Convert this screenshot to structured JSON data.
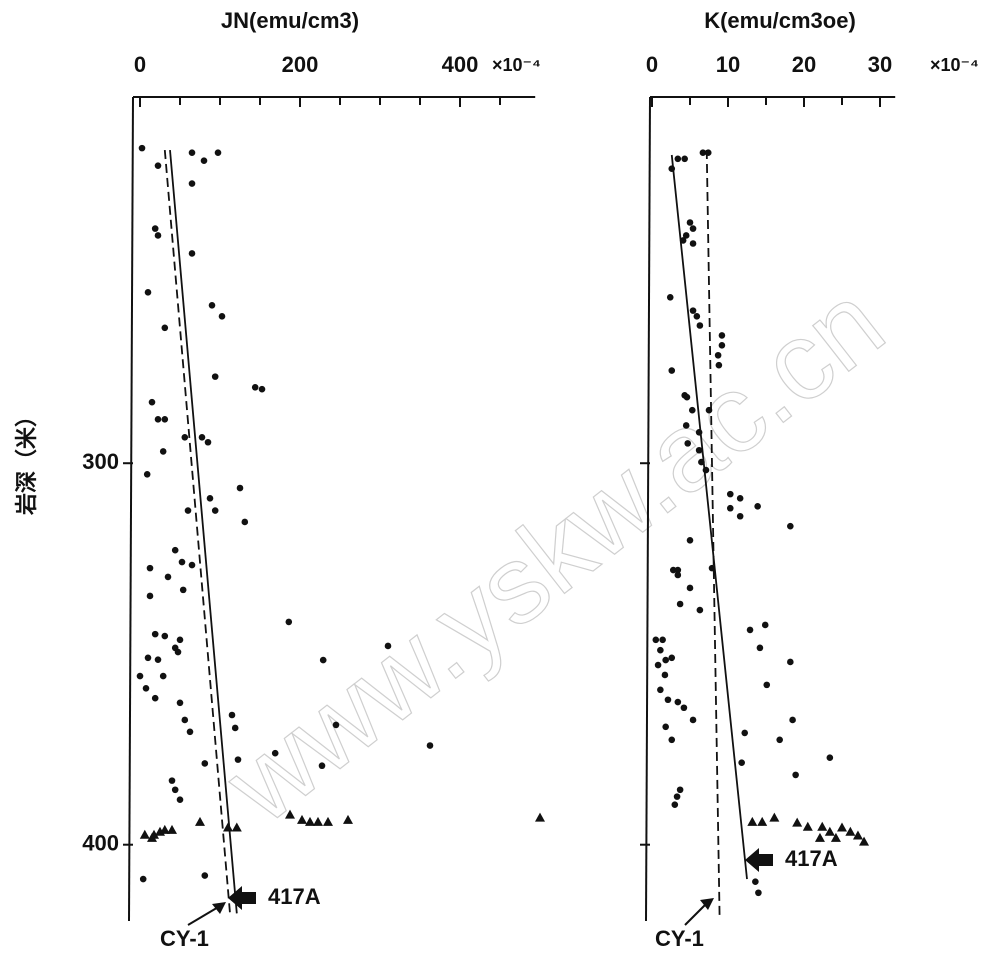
{
  "watermark": "www.yskw.ac.cn",
  "chart_data": [
    {
      "type": "scatter",
      "x_label": "JN(emu/cm3)",
      "x_multiplier": "×10⁻⁴",
      "y_label": "岩深（米）",
      "xlim": [
        0,
        494
      ],
      "xticks": [
        0,
        200,
        400
      ],
      "xminorticks": [
        50,
        100,
        150,
        250,
        300,
        350,
        450
      ],
      "ylim": [
        204,
        420
      ],
      "y_inverted": true,
      "yticks": [
        300,
        400
      ],
      "ytick_labels": true,
      "annotations": [
        "CY-1",
        "417A"
      ],
      "series": [
        {
          "marker": "circle",
          "color": "#111111",
          "x": [
            2.5,
            22.5,
            65,
            80,
            97.5,
            65,
            22.5,
            19,
            65,
            10,
            90,
            102.5,
            31,
            94,
            144,
            152.5,
            15,
            22.5,
            31,
            56,
            77.5,
            85,
            29,
            9,
            87.5,
            125,
            94,
            60,
            131,
            44,
            12.5,
            52.5,
            65,
            35,
            12.5,
            54,
            186,
            19,
            31,
            44,
            47.5,
            50,
            10,
            22.5,
            0,
            29,
            7.5,
            19,
            310,
            229,
            50,
            56,
            115,
            62.5,
            119,
            245,
            362.5,
            169,
            122.5,
            81,
            227.5,
            44,
            50,
            40,
            4,
            81
          ],
          "values": [
            217.4,
            222,
            218.6,
            220.7,
            218.6,
            226.7,
            240.3,
            238.5,
            245,
            255.2,
            258.6,
            261.5,
            264.5,
            277.3,
            280.1,
            280.6,
            284,
            288.5,
            288.5,
            293.2,
            293.2,
            294.5,
            296.9,
            302.9,
            309.2,
            306.5,
            312.4,
            312.4,
            315.4,
            322.8,
            327.5,
            325.9,
            326.7,
            329.8,
            334.8,
            333.2,
            341.6,
            344.8,
            345.3,
            348.4,
            349.5,
            346.3,
            351,
            351.5,
            355.8,
            355.8,
            359,
            361.6,
            347.9,
            351.6,
            362.8,
            367.3,
            366,
            370.4,
            369.4,
            368.6,
            374,
            376,
            377.7,
            378.7,
            379.3,
            385.6,
            388.2,
            383.2,
            409,
            408.1
          ]
        },
        {
          "marker": "triangle",
          "color": "#111111",
          "x": [
            6,
            17.5,
            25,
            31,
            40,
            15,
            75,
            110,
            121,
            187.5,
            202.5,
            212.5,
            222.5,
            235,
            260,
            500
          ],
          "values": [
            397.4,
            397.4,
            396.6,
            396.1,
            396.1,
            398.2,
            394,
            395.5,
            395.5,
            392.1,
            393.5,
            394,
            394,
            394,
            393.5,
            392.9
          ]
        }
      ],
      "trend_lines": [
        {
          "style": "solid",
          "x": [
            37.5,
            121
          ],
          "values": [
            217.9,
            418
          ]
        },
        {
          "style": "dashed",
          "x": [
            31,
            112.5
          ],
          "values": [
            217.9,
            418
          ]
        }
      ]
    },
    {
      "type": "scatter",
      "x_label": "K(emu/cm3oe)",
      "x_multiplier": "×10⁻⁴",
      "xlim": [
        0,
        32
      ],
      "xticks": [
        0,
        10,
        20,
        30
      ],
      "xminorticks": [
        5,
        15,
        25
      ],
      "ylim": [
        204,
        420
      ],
      "y_inverted": true,
      "yticks": [
        300,
        400
      ],
      "ytick_labels": false,
      "annotations": [
        "CY-1",
        "417A"
      ],
      "series": [
        {
          "marker": "circle",
          "color": "#111111",
          "x": [
            2.6,
            3.4,
            4.3,
            6.7,
            7.4,
            5,
            5.4,
            4.5,
            4.1,
            5.4,
            2.4,
            5.4,
            5.9,
            6.3,
            9.2,
            9.2,
            8.7,
            8.8,
            2.6,
            4.3,
            4.6,
            5.3,
            7.5,
            4.5,
            6.2,
            4.7,
            6.2,
            6.5,
            7.1,
            10.3,
            11.6,
            10.3,
            11.6,
            13.9,
            18.2,
            5,
            2.8,
            3.4,
            3.4,
            7.9,
            5,
            3.7,
            6.3,
            14.9,
            12.9,
            0.5,
            1.4,
            1.1,
            1.8,
            2.6,
            0.8,
            1.7,
            14.2,
            18.2,
            15.1,
            1.1,
            2.1,
            3.4,
            4.2,
            1.8,
            5.4,
            2.6,
            18.5,
            12.2,
            16.8,
            23.4,
            11.8,
            18.9,
            3.7,
            3.3,
            3,
            13.6,
            14
          ],
          "values": [
            222.8,
            220.2,
            220.2,
            218.6,
            218.6,
            236.9,
            238.5,
            240.3,
            241.6,
            242.4,
            256.5,
            260,
            261.5,
            263.9,
            266.5,
            269.1,
            271.7,
            274.3,
            275.7,
            282.2,
            282.7,
            286.1,
            286.1,
            290.1,
            291.9,
            294.8,
            296.6,
            299.7,
            301.8,
            308.1,
            309.2,
            311.8,
            313.9,
            311.3,
            316.5,
            320.2,
            328,
            328,
            329.3,
            327.5,
            332.7,
            336.9,
            338.5,
            342.4,
            343.7,
            346.3,
            346.3,
            349,
            351.6,
            351,
            352.9,
            355.5,
            348.4,
            352.1,
            358.1,
            359.4,
            362,
            362.6,
            364.1,
            369.1,
            367.3,
            372.5,
            367.3,
            370.7,
            372.5,
            377.2,
            378.5,
            381.7,
            385.6,
            387.4,
            389.5,
            409.7,
            412.6
          ]
        },
        {
          "marker": "triangle",
          "color": "#111111",
          "x": [
            13.2,
            14.5,
            16.1,
            19.1,
            20.5,
            22.4,
            23.4,
            25,
            26.1,
            27.1,
            27.9,
            22.1,
            24.2
          ],
          "values": [
            394,
            394,
            392.9,
            394.2,
            395.3,
            395.3,
            396.6,
            395.5,
            396.6,
            397.6,
            399.2,
            398.2,
            398.2
          ]
        }
      ],
      "trend_lines": [
        {
          "style": "solid",
          "x": [
            2.6,
            12.5
          ],
          "values": [
            219.2,
            409
          ]
        },
        {
          "style": "dashed",
          "x": [
            7.2,
            8.9
          ],
          "values": [
            217.9,
            419.6
          ]
        }
      ]
    }
  ]
}
